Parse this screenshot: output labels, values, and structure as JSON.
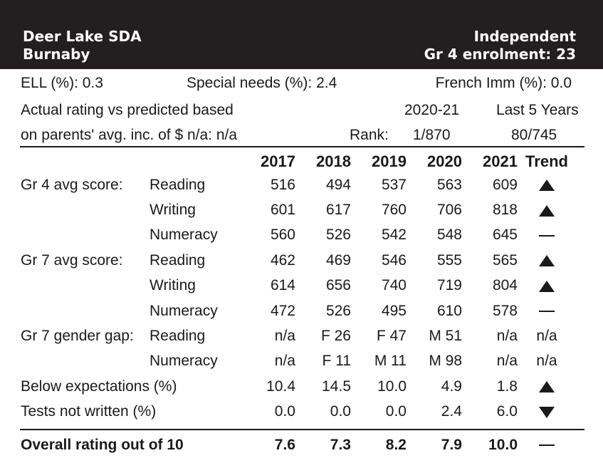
{
  "header": {
    "school": "Deer Lake SDA",
    "city": "Burnaby",
    "type": "Independent",
    "enrolment": "Gr 4 enrolment: 23"
  },
  "stats": {
    "ell": "ELL (%): 0.3",
    "special_needs": "Special needs (%): 2.4",
    "french_imm": "French Imm (%): 0.0"
  },
  "rating_note": {
    "line1": "Actual rating vs predicted based",
    "line2": "on parents' avg. inc. of $ n/a: n/a",
    "period_current": "2020-21",
    "period_last5": "Last 5 Years",
    "rank_label": "Rank:",
    "rank_current": "1/870",
    "rank_last5": "80/745"
  },
  "table": {
    "years": [
      "2017",
      "2018",
      "2019",
      "2020",
      "2021"
    ],
    "trend_header": "Trend",
    "rows": [
      {
        "group": "Gr 4 avg score:",
        "label": "Reading",
        "values": [
          "516",
          "494",
          "537",
          "563",
          "609"
        ],
        "trend": "up-triangle-icon"
      },
      {
        "group": "",
        "label": "Writing",
        "values": [
          "601",
          "617",
          "760",
          "706",
          "818"
        ],
        "trend": "up-triangle-icon"
      },
      {
        "group": "",
        "label": "Numeracy",
        "values": [
          "560",
          "526",
          "542",
          "548",
          "645"
        ],
        "trend": "dash-icon"
      },
      {
        "group": "Gr 7 avg score:",
        "label": "Reading",
        "values": [
          "462",
          "469",
          "546",
          "555",
          "565"
        ],
        "trend": "up-triangle-icon"
      },
      {
        "group": "",
        "label": "Writing",
        "values": [
          "614",
          "656",
          "740",
          "719",
          "804"
        ],
        "trend": "up-triangle-icon"
      },
      {
        "group": "",
        "label": "Numeracy",
        "values": [
          "472",
          "526",
          "495",
          "610",
          "578"
        ],
        "trend": "dash-icon"
      },
      {
        "group": "Gr 7 gender gap:",
        "label": "Reading",
        "values": [
          "n/a",
          "F 26",
          "F 47",
          "M 51",
          "n/a"
        ],
        "trend_text": "n/a"
      },
      {
        "group": "",
        "label": "Numeracy",
        "values": [
          "n/a",
          "F 11",
          "M 11",
          "M 98",
          "n/a"
        ],
        "trend_text": "n/a"
      },
      {
        "group": "Below expectations (%)",
        "label": "",
        "values": [
          "10.4",
          "14.5",
          "10.0",
          "4.9",
          "1.8"
        ],
        "trend": "up-triangle-icon"
      },
      {
        "group": "Tests not written (%)",
        "label": "",
        "values": [
          "0.0",
          "0.0",
          "0.0",
          "2.4",
          "6.0"
        ],
        "trend": "down-triangle-icon"
      }
    ],
    "overall": {
      "label": "Overall rating out of 10",
      "values": [
        "7.6",
        "7.3",
        "8.2",
        "7.9",
        "10.0"
      ],
      "trend": "dash-icon"
    }
  }
}
